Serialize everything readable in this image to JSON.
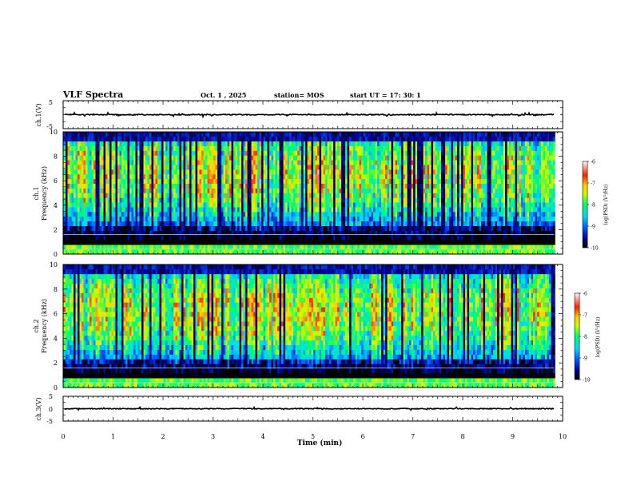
{
  "header": {
    "title": "VLF Spectra",
    "date": "Oct. 1 , 2025",
    "station": "station= MOS",
    "start_ut": "start  UT =   17: 30: 1"
  },
  "chart_data": {
    "type": "heatmap",
    "x": {
      "label": "Time  (min)",
      "range": [
        0,
        10
      ],
      "ticks": [
        "0",
        "1",
        "2",
        "3",
        "4",
        "5",
        "6",
        "7",
        "8",
        "9",
        "10"
      ],
      "data_end": 9.83
    },
    "panels": [
      {
        "name": "ch1-waveform",
        "type": "line",
        "ylabel": "ch.1(V)",
        "ylim": [
          -5,
          5
        ],
        "yticks": [
          "5",
          "-5"
        ],
        "level": 0
      },
      {
        "name": "ch1-spectrogram",
        "type": "heatmap",
        "ylabel_line1": "ch.1",
        "ylabel_line2": "Frequency  (kHz)",
        "ylim": [
          0,
          10
        ],
        "yticks": [
          "0",
          "2",
          "4",
          "6",
          "8",
          "10"
        ],
        "band_center_khz": 6.5,
        "colorbar": {
          "label": "log(PSD) (V²/Hz)",
          "range": [
            -10,
            -6
          ],
          "ticks": [
            "-6",
            "-7",
            "-8",
            "-9",
            "-10"
          ]
        }
      },
      {
        "name": "ch2-spectrogram",
        "type": "heatmap",
        "ylabel_line1": "ch.2",
        "ylabel_line2": "Frequency  (kHz)",
        "ylim": [
          0,
          10
        ],
        "yticks": [
          "0",
          "2",
          "4",
          "6",
          "8",
          "10"
        ],
        "band_center_khz": 6.2,
        "colorbar": {
          "label": "log(PSD) (V²/Hz)",
          "range": [
            -10,
            -6
          ],
          "ticks": [
            "-6",
            "-7",
            "-8",
            "-9",
            "-10"
          ]
        }
      },
      {
        "name": "ch3-waveform",
        "type": "line",
        "ylabel": "ch.3(V)",
        "ylim": [
          -5,
          5
        ],
        "yticks": [
          "5",
          "0",
          "-5"
        ],
        "level": 0
      }
    ]
  }
}
